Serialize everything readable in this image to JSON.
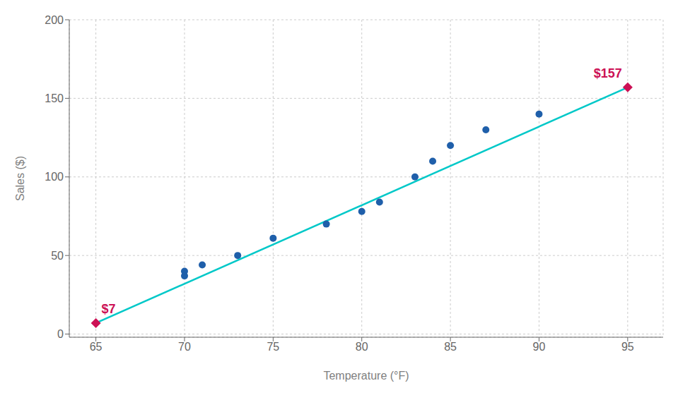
{
  "chart_data": {
    "type": "scatter",
    "x_label": "Temperature (°F)",
    "y_label": "Sales ($)",
    "xlim": [
      63.5,
      97
    ],
    "ylim": [
      -2,
      200
    ],
    "xticks": [
      65,
      70,
      75,
      80,
      85,
      90,
      95
    ],
    "yticks": [
      0,
      50,
      100,
      150,
      200
    ],
    "grid": true,
    "series": [
      {
        "type": "line",
        "color": "#00c8c8",
        "x": [
          65,
          95
        ],
        "values": [
          7,
          157
        ]
      },
      {
        "type": "scatter",
        "color": "#1f5faa",
        "x": [
          70,
          70,
          71,
          73,
          75,
          78,
          80,
          81,
          83,
          84,
          85,
          87,
          90
        ],
        "values": [
          37,
          40,
          44,
          50,
          61,
          70,
          78,
          84,
          100,
          110,
          120,
          130,
          140
        ]
      },
      {
        "type": "scatter",
        "marker": "diamond",
        "color": "#cc1155",
        "x": [
          65,
          95
        ],
        "values": [
          7,
          157
        ],
        "value_labels": [
          "$7",
          "$157"
        ],
        "data_labels": true
      }
    ]
  }
}
